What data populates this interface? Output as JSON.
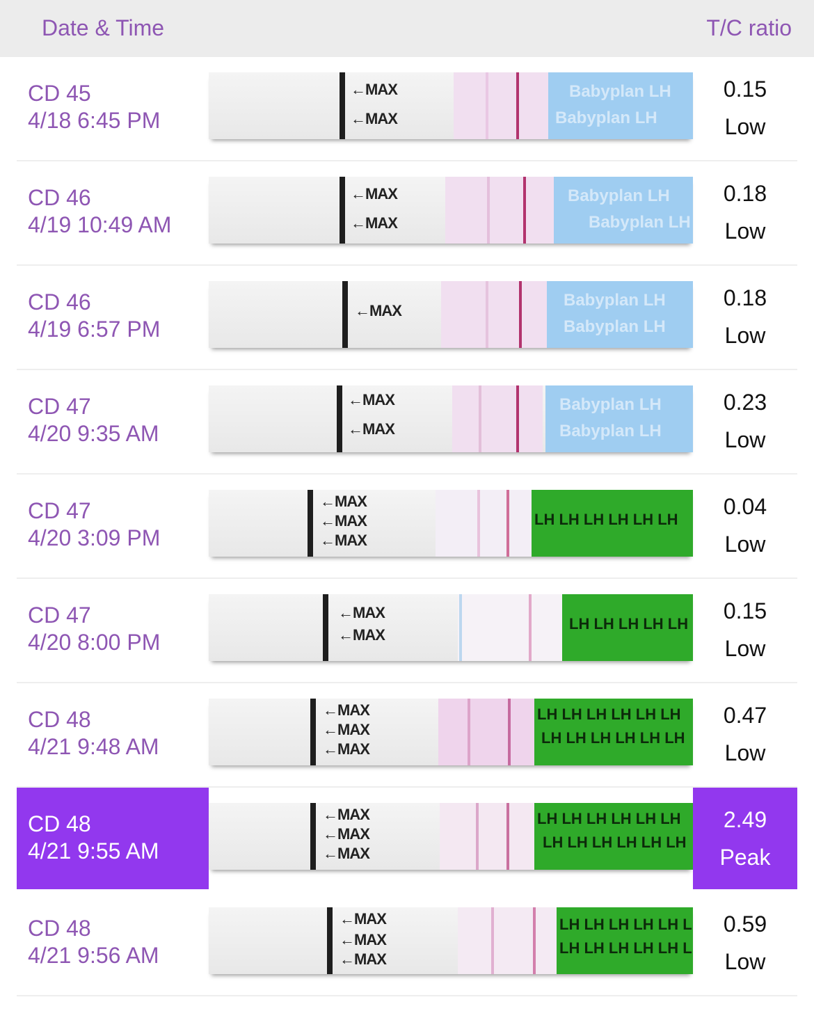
{
  "header": {
    "date_time": "Date & Time",
    "tc_ratio": "T/C ratio"
  },
  "strip_labels": {
    "max": "←MAX",
    "blue_brand": "Babyplan LH",
    "green_brand": "LH LH LH LH LH LH"
  },
  "colors": {
    "accent": "#9238ee",
    "label": "#8e56b3",
    "header_bg": "#ececec"
  },
  "rows": [
    {
      "cd": "CD 45",
      "datetime": "4/18 6:45 PM",
      "ratio": "0.15",
      "level": "Low"
    },
    {
      "cd": "CD 46",
      "datetime": "4/19 10:49 AM",
      "ratio": "0.18",
      "level": "Low"
    },
    {
      "cd": "CD 46",
      "datetime": "4/19 6:57 PM",
      "ratio": "0.18",
      "level": "Low"
    },
    {
      "cd": "CD 47",
      "datetime": "4/20 9:35 AM",
      "ratio": "0.23",
      "level": "Low"
    },
    {
      "cd": "CD 47",
      "datetime": "4/20 3:09 PM",
      "ratio": "0.04",
      "level": "Low"
    },
    {
      "cd": "CD 47",
      "datetime": "4/20 8:00 PM",
      "ratio": "0.15",
      "level": "Low"
    },
    {
      "cd": "CD 48",
      "datetime": "4/21 9:48 AM",
      "ratio": "0.47",
      "level": "Low"
    },
    {
      "cd": "CD 48",
      "datetime": "4/21 9:55 AM",
      "ratio": "2.49",
      "level": "Peak"
    },
    {
      "cd": "CD 48",
      "datetime": "4/21 9:56 AM",
      "ratio": "0.59",
      "level": "Low"
    }
  ]
}
